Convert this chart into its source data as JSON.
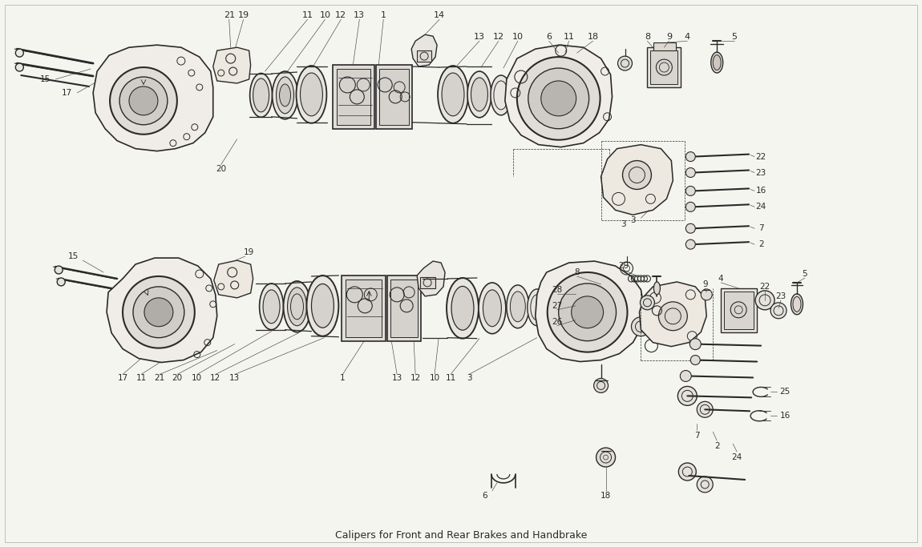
{
  "title": "Calipers for Front and Rear Brakes and Handbrake",
  "bg_color": "#f5f5f0",
  "line_color": "#2a2a2a",
  "figsize": [
    11.5,
    6.83
  ],
  "dpi": 100,
  "border_color": "#cccccc"
}
